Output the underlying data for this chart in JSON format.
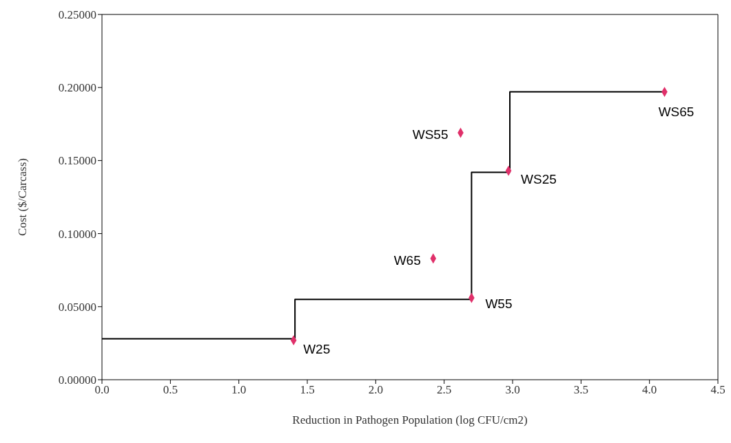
{
  "chart_data": {
    "type": "scatter",
    "xlabel": "Reduction in Pathogen Population (log CFU/cm2)",
    "ylabel": "Cost ($/Carcass)",
    "series": [
      {
        "type": "step",
        "color": "#000000",
        "x": [
          0,
          1.41,
          2.7,
          2.98,
          4.11
        ],
        "values": [
          0.028,
          0.055,
          0.142,
          0.197,
          0.197
        ],
        "marker": "none"
      },
      {
        "color": "#e0306a",
        "x": [
          1.4,
          2.7,
          2.42,
          2.97,
          2.62,
          4.11
        ],
        "values": [
          0.027,
          0.056,
          0.083,
          0.143,
          0.169,
          0.197
        ],
        "marker": "diamond"
      }
    ],
    "annotations": [
      {
        "text": "W25",
        "x": 1.4,
        "y": 0.027
      },
      {
        "text": "W55",
        "x": 2.7,
        "y": 0.056
      },
      {
        "text": "W65",
        "x": 2.42,
        "y": 0.083
      },
      {
        "text": "WS25",
        "x": 2.97,
        "y": 0.143
      },
      {
        "text": "WS55",
        "x": 2.62,
        "y": 0.169
      },
      {
        "text": "WS65",
        "x": 4.11,
        "y": 0.197
      }
    ],
    "xlim": [
      0,
      4.5
    ],
    "xticks": [
      {
        "value": 0,
        "label": "0.0"
      },
      {
        "value": 0.5,
        "label": "0.5"
      },
      {
        "value": 1,
        "label": "1.0"
      },
      {
        "value": 1.5,
        "label": "1.5"
      },
      {
        "value": 2,
        "label": "2.0"
      },
      {
        "value": 2.5,
        "label": "2.5"
      },
      {
        "value": 3,
        "label": "3.0"
      },
      {
        "value": 3.5,
        "label": "3.5"
      },
      {
        "value": 4,
        "label": "4.0"
      },
      {
        "value": 4.5,
        "label": "4.5"
      }
    ],
    "ylim": [
      0,
      0.25
    ],
    "yticks": [
      {
        "value": 0,
        "label": "0.00000"
      },
      {
        "value": 0.05,
        "label": "0.05000"
      },
      {
        "value": 0.1,
        "label": "0.10000"
      },
      {
        "value": 0.15,
        "label": "0.15000"
      },
      {
        "value": 0.2,
        "label": "0.20000"
      },
      {
        "value": 0.25,
        "label": "0.25000"
      }
    ],
    "grid": false,
    "legend": false
  }
}
